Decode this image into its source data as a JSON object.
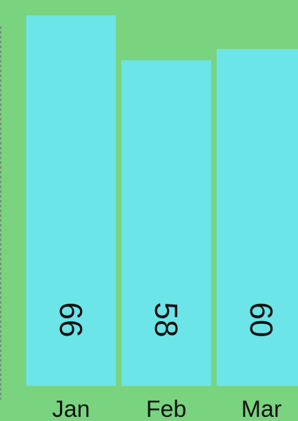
{
  "chart_data": {
    "type": "bar",
    "categories": [
      "Jan",
      "Feb",
      "Mar"
    ],
    "values": [
      66,
      58,
      60
    ],
    "data_labels": [
      "66",
      "58",
      "60"
    ],
    "title": "",
    "xlabel": "",
    "ylabel": "",
    "ylim": [
      0,
      67.5
    ],
    "grid": false,
    "legend": "none",
    "data_label_orientation": "rotated-90-clockwise",
    "colors": {
      "background": "#7ad37f",
      "bar": "#6ce5e8",
      "text": "#111111",
      "axis": "#7b7b7b"
    }
  }
}
